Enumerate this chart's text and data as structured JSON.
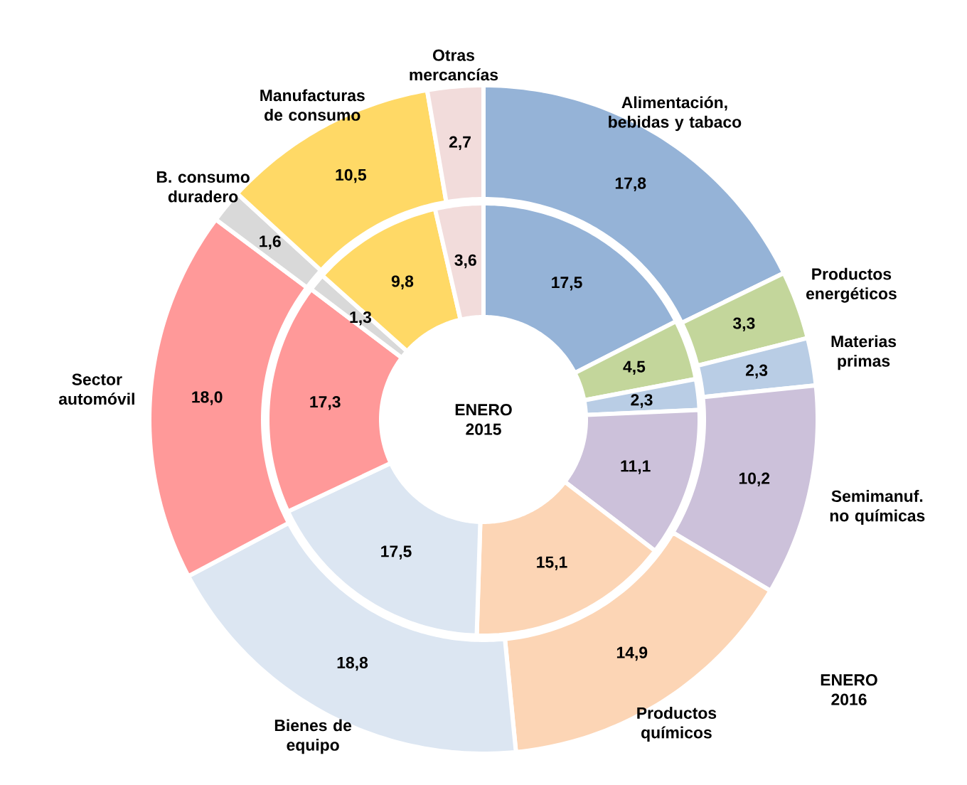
{
  "chart_data": {
    "type": "donut",
    "categories": [
      "Alimentación, bebidas y tabaco",
      "Productos energéticos",
      "Materias primas",
      "Semimanuf. no químicas",
      "Productos químicos",
      "Bienes de equipo",
      "Sector automóvil",
      "B. consumo duradero",
      "Manufacturas de consumo",
      "Otras mercancías"
    ],
    "colors": [
      "#95b3d7",
      "#c3d69b",
      "#b9cde5",
      "#ccc1da",
      "#fcd5b5",
      "#dce6f2",
      "#ff9999",
      "#d9d9d9",
      "#ffd966",
      "#f2dcdb"
    ],
    "series": [
      {
        "name": "ENERO 2016",
        "values": [
          17.8,
          3.3,
          2.3,
          10.2,
          14.9,
          18.8,
          18.0,
          1.6,
          10.5,
          2.7
        ],
        "value_labels": [
          "17,8",
          "3,3",
          "2,3",
          "10,2",
          "14,9",
          "18,8",
          "18,0",
          "1,6",
          "10,5",
          "2,7"
        ]
      },
      {
        "name": "ENERO 2015",
        "values": [
          17.5,
          4.5,
          2.3,
          11.1,
          15.1,
          17.5,
          17.3,
          1.3,
          9.8,
          3.6
        ],
        "value_labels": [
          "17,5",
          "4,5",
          "2,3",
          "11,1",
          "15,1",
          "17,5",
          "17,3",
          "1,3",
          "9,8",
          "3,6"
        ]
      }
    ]
  }
}
